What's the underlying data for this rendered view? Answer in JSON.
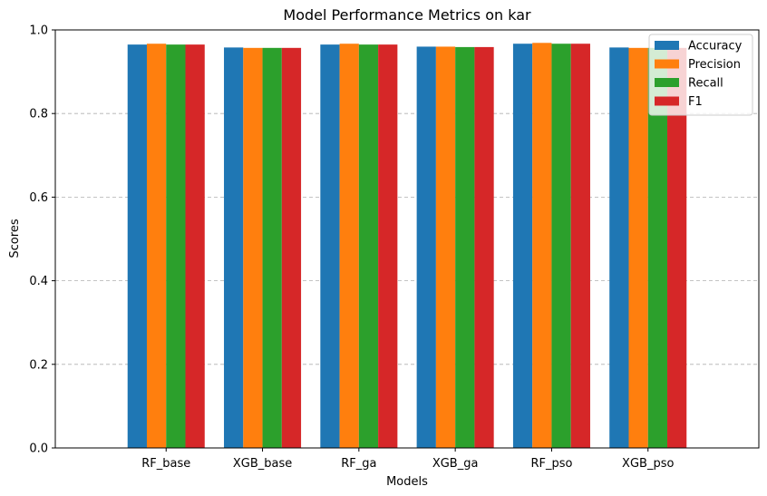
{
  "chart_data": {
    "type": "bar",
    "title": "Model Performance Metrics on kar",
    "xlabel": "Models",
    "ylabel": "Scores",
    "ylim": [
      0,
      1.0
    ],
    "yticks": [
      0.0,
      0.2,
      0.4,
      0.6,
      0.8,
      1.0
    ],
    "ytick_labels": [
      "0.0",
      "0.2",
      "0.4",
      "0.6",
      "0.8",
      "1.0"
    ],
    "grid": "y-dashed",
    "legend_position": "top-right",
    "categories": [
      "RF_base",
      "XGB_base",
      "RF_ga",
      "XGB_ga",
      "RF_pso",
      "XGB_pso"
    ],
    "series": [
      {
        "name": "Accuracy",
        "color": "#1f77b4",
        "values": [
          0.965,
          0.958,
          0.965,
          0.96,
          0.967,
          0.958
        ]
      },
      {
        "name": "Precision",
        "color": "#ff7f0e",
        "values": [
          0.967,
          0.957,
          0.967,
          0.96,
          0.969,
          0.957
        ]
      },
      {
        "name": "Recall",
        "color": "#2ca02c",
        "values": [
          0.965,
          0.957,
          0.965,
          0.959,
          0.967,
          0.957
        ]
      },
      {
        "name": "F1",
        "color": "#d62728",
        "values": [
          0.965,
          0.957,
          0.965,
          0.959,
          0.967,
          0.957
        ]
      }
    ]
  }
}
